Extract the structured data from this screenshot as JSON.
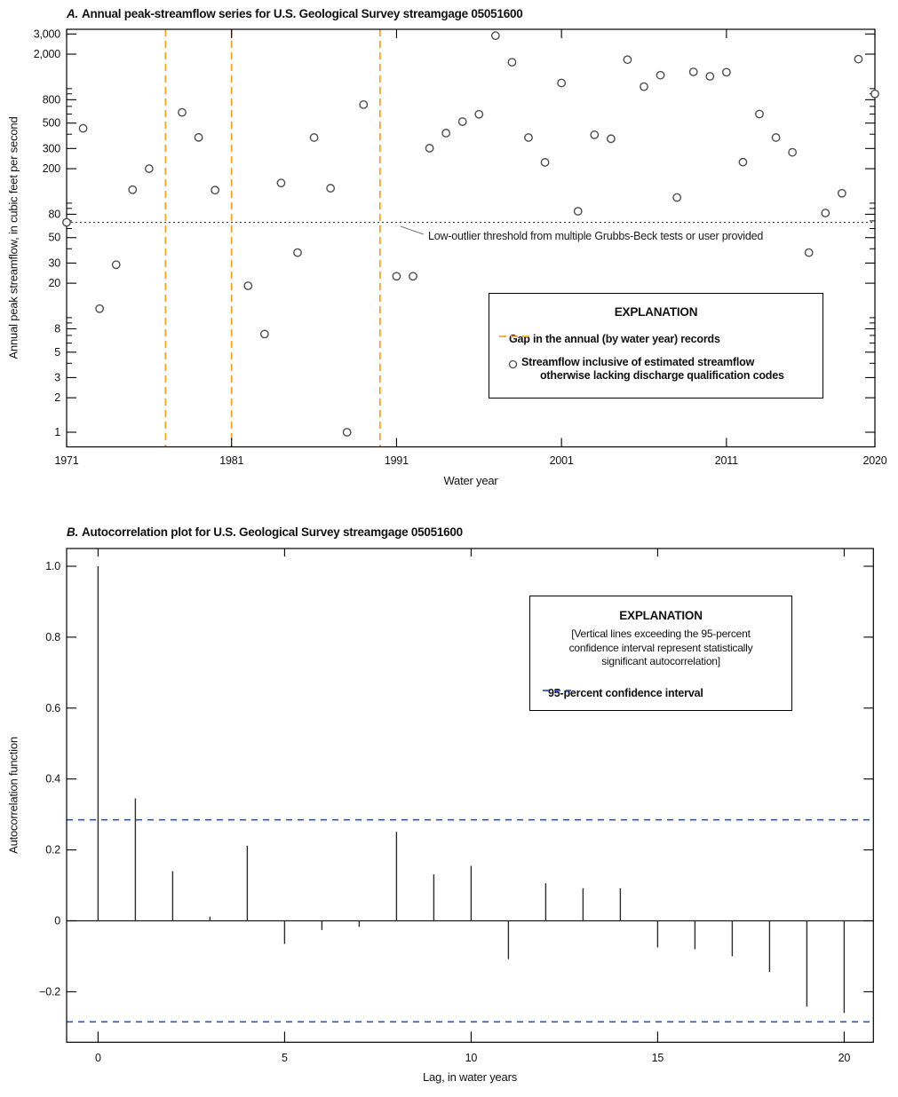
{
  "colors": {
    "gap_line": "#F5A42A",
    "ci_line": "#3151C1",
    "marker": "#4D4D4D",
    "stem": "#2D2D2D",
    "threshold_line": "#3A3A3A",
    "frame": "#000000"
  },
  "panel_a": {
    "title_prefix": "A.",
    "title": "Annual peak-streamflow series for U.S. Geological Survey streamgage 05051600",
    "xlabel": "Water year",
    "ylabel": "Annual peak streamflow, in cubic feet per second",
    "threshold_annotation": "Low-outlier threshold from multiple Grubbs-Beck tests or user provided",
    "legend": {
      "title": "EXPLANATION",
      "gap_label": "Gap in the annual (by water year) records",
      "flow_label_line1": "Streamflow inclusive of estimated streamflow",
      "flow_label_line2": "otherwise lacking discharge qualification codes"
    }
  },
  "panel_b": {
    "title_prefix": "B.",
    "title": "Autocorrelation plot for U.S. Geological Survey streamgage 05051600",
    "xlabel": "Lag, in water years",
    "ylabel": "Autocorrelation function",
    "legend": {
      "title": "EXPLANATION",
      "note_line1": "[Vertical lines exceeding the 95-percent",
      "note_line2": "confidence interval represent statistically",
      "note_line3": "significant autocorrelation]",
      "ci_label": "95-percent confidence interval"
    }
  },
  "chart_data": [
    {
      "type": "scatter",
      "panel": "A",
      "title": "Annual peak-streamflow series for U.S. Geological Survey streamgage 05051600",
      "xlabel": "Water year",
      "ylabel": "Annual peak streamflow, in cubic feet per second",
      "y_scale": "log",
      "xlim": [
        1971,
        2020
      ],
      "ylim": [
        1,
        3000
      ],
      "x_ticks": [
        1971,
        1981,
        1991,
        2001,
        2011,
        2020
      ],
      "y_ticks": [
        {
          "value": 3000,
          "label": "3,000"
        },
        {
          "value": 2000,
          "label": "2,000"
        },
        {
          "value": 800,
          "label": "800"
        },
        {
          "value": 500,
          "label": "500"
        },
        {
          "value": 300,
          "label": "300"
        },
        {
          "value": 200,
          "label": "200"
        },
        {
          "value": 80,
          "label": "80"
        },
        {
          "value": 50,
          "label": "50"
        },
        {
          "value": 30,
          "label": "30"
        },
        {
          "value": 20,
          "label": "20"
        },
        {
          "value": 8,
          "label": "8"
        },
        {
          "value": 5,
          "label": "5"
        },
        {
          "value": 3,
          "label": "3"
        },
        {
          "value": 2,
          "label": "2"
        },
        {
          "value": 1,
          "label": "1"
        }
      ],
      "y_minor_ticks": [
        1000,
        900,
        700,
        600,
        400,
        100,
        90,
        70,
        60,
        40,
        10,
        9,
        7,
        6,
        4
      ],
      "gap_years": [
        1977,
        1981,
        1990
      ],
      "low_outlier_threshold": 68,
      "series": [
        {
          "name": "Streamflow inclusive of estimated streamflow otherwise lacking discharge qualification codes",
          "points": [
            [
              1971,
              68
            ],
            [
              1972,
              450
            ],
            [
              1973,
              12
            ],
            [
              1974,
              29
            ],
            [
              1975,
              131
            ],
            [
              1976,
              200
            ],
            [
              1978,
              620
            ],
            [
              1979,
              375
            ],
            [
              1980,
              130
            ],
            [
              1982,
              19
            ],
            [
              1983,
              7.2
            ],
            [
              1984,
              150
            ],
            [
              1985,
              37
            ],
            [
              1986,
              374
            ],
            [
              1987,
              135
            ],
            [
              1988,
              1
            ],
            [
              1989,
              725
            ],
            [
              1991,
              23
            ],
            [
              1992,
              23
            ],
            [
              1993,
              302
            ],
            [
              1994,
              409
            ],
            [
              1995,
              515
            ],
            [
              1996,
              597
            ],
            [
              1997,
              2900
            ],
            [
              1998,
              1700
            ],
            [
              1999,
              374
            ],
            [
              2000,
              227
            ],
            [
              2001,
              1120
            ],
            [
              2002,
              85
            ],
            [
              2003,
              395
            ],
            [
              2004,
              365
            ],
            [
              2005,
              1790
            ],
            [
              2006,
              1040
            ],
            [
              2007,
              1310
            ],
            [
              2008,
              112
            ],
            [
              2009,
              1400
            ],
            [
              2010,
              1280
            ],
            [
              2011,
              1390
            ],
            [
              2012,
              228
            ],
            [
              2013,
              600
            ],
            [
              2014,
              374
            ],
            [
              2015,
              278
            ],
            [
              2016,
              37
            ],
            [
              2017,
              82
            ],
            [
              2018,
              122
            ],
            [
              2019,
              1810
            ],
            [
              2020,
              900
            ]
          ]
        }
      ]
    },
    {
      "type": "stem",
      "panel": "B",
      "title": "Autocorrelation plot for U.S. Geological Survey streamgage 05051600",
      "xlabel": "Lag, in water years",
      "ylabel": "Autocorrelation function",
      "xlim": [
        -0.84,
        20.78
      ],
      "ylim": [
        -0.3425,
        1.05
      ],
      "x_ticks": [
        0,
        5,
        10,
        15,
        20
      ],
      "y_ticks": [
        {
          "value": 1.0,
          "label": "1.0"
        },
        {
          "value": 0.8,
          "label": "0.8"
        },
        {
          "value": 0.6,
          "label": "0.6"
        },
        {
          "value": 0.4,
          "label": "0.4"
        },
        {
          "value": 0.2,
          "label": "0.2"
        },
        {
          "value": 0,
          "label": "0"
        },
        {
          "value": -0.2,
          "label": "−0.2"
        }
      ],
      "confidence_interval_95": 0.285,
      "lags": [
        0,
        1,
        2,
        3,
        4,
        5,
        6,
        7,
        8,
        9,
        10,
        11,
        12,
        13,
        14,
        15,
        16,
        17,
        18,
        19,
        20
      ],
      "acf": [
        1.0,
        0.345,
        0.14,
        0.012,
        0.212,
        -0.065,
        -0.026,
        -0.017,
        0.251,
        0.131,
        0.155,
        -0.108,
        0.106,
        0.092,
        0.092,
        -0.075,
        -0.08,
        -0.1,
        -0.144,
        -0.242,
        -0.26
      ]
    }
  ]
}
